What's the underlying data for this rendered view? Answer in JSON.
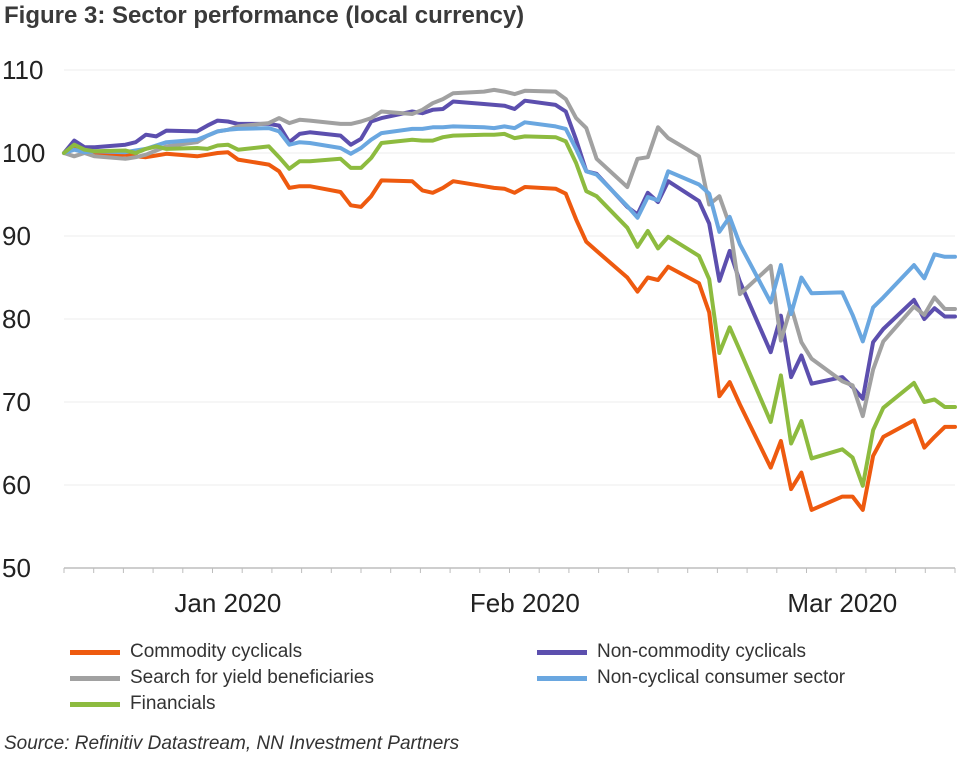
{
  "figure": {
    "title": "Figure 3: Sector performance (local currency)",
    "source": "Source: Refinitiv Datastream, NN Investment Partners"
  },
  "chart_data": {
    "type": "line",
    "title": "Figure 3: Sector performance (local currency)",
    "xlabel": "",
    "ylabel": "",
    "ylim": [
      50,
      110
    ],
    "y_ticks": [
      50,
      60,
      70,
      80,
      90,
      100,
      110
    ],
    "x_range": [
      "2019-12-31",
      "2020-03-27"
    ],
    "x_tick_labels": [
      {
        "label": "Jan 2020",
        "date": "2020-01-16"
      },
      {
        "label": "Feb 2020",
        "date": "2020-02-14"
      },
      {
        "label": "Mar 2020",
        "date": "2020-03-16"
      }
    ],
    "grid": {
      "horizontal": true,
      "vertical": false
    },
    "legend_position": "bottom",
    "x": [
      "2019-12-31",
      "2020-01-01",
      "2020-01-02",
      "2020-01-03",
      "2020-01-06",
      "2020-01-07",
      "2020-01-08",
      "2020-01-09",
      "2020-01-10",
      "2020-01-13",
      "2020-01-14",
      "2020-01-15",
      "2020-01-16",
      "2020-01-17",
      "2020-01-20",
      "2020-01-21",
      "2020-01-22",
      "2020-01-23",
      "2020-01-24",
      "2020-01-27",
      "2020-01-28",
      "2020-01-29",
      "2020-01-30",
      "2020-01-31",
      "2020-02-03",
      "2020-02-04",
      "2020-02-05",
      "2020-02-06",
      "2020-02-07",
      "2020-02-10",
      "2020-02-11",
      "2020-02-12",
      "2020-02-13",
      "2020-02-14",
      "2020-02-17",
      "2020-02-18",
      "2020-02-19",
      "2020-02-20",
      "2020-02-21",
      "2020-02-24",
      "2020-02-25",
      "2020-02-26",
      "2020-02-27",
      "2020-02-28",
      "2020-03-02",
      "2020-03-03",
      "2020-03-04",
      "2020-03-05",
      "2020-03-06",
      "2020-03-09",
      "2020-03-10",
      "2020-03-11",
      "2020-03-12",
      "2020-03-13",
      "2020-03-16",
      "2020-03-17",
      "2020-03-18",
      "2020-03-19",
      "2020-03-20",
      "2020-03-23",
      "2020-03-24",
      "2020-03-25",
      "2020-03-26",
      "2020-03-27"
    ],
    "series": [
      {
        "name": "Commodity cyclicals",
        "color": "#ee5a0f",
        "values": [
          100,
          100.8,
          100.3,
          99.9,
          99.8,
          99.6,
          99.5,
          99.7,
          99.9,
          99.6,
          99.8,
          100.0,
          100.1,
          99.2,
          98.6,
          97.8,
          95.8,
          96.0,
          96.0,
          95.3,
          93.7,
          93.5,
          94.8,
          96.7,
          96.6,
          95.5,
          95.2,
          95.8,
          96.6,
          96.0,
          95.8,
          95.7,
          95.2,
          95.9,
          95.7,
          95.1,
          92.0,
          89.3,
          88.2,
          85.0,
          83.3,
          85.0,
          84.7,
          86.3,
          84.3,
          80.8,
          70.7,
          72.4,
          69.7,
          62.1,
          65.3,
          59.5,
          61.5,
          57.0,
          58.6,
          58.6,
          57.0,
          63.5,
          65.8,
          67.8,
          64.5,
          65.8,
          67.0,
          67.0
        ]
      },
      {
        "name": "Non-commodity cyclicals",
        "color": "#5c4fae",
        "values": [
          100,
          101.5,
          100.7,
          100.7,
          101.0,
          101.3,
          102.2,
          102.0,
          102.7,
          102.6,
          103.3,
          103.9,
          103.8,
          103.5,
          103.5,
          103.3,
          101.3,
          102.3,
          102.5,
          102.1,
          101.0,
          101.7,
          103.8,
          104.2,
          105.0,
          104.8,
          105.2,
          105.3,
          106.2,
          105.9,
          105.8,
          105.7,
          105.3,
          106.3,
          105.8,
          105.0,
          101.6,
          97.8,
          97.5,
          93.5,
          92.6,
          95.2,
          94.1,
          96.6,
          94.2,
          91.5,
          84.6,
          88.2,
          84.5,
          76.0,
          80.4,
          73.0,
          75.6,
          72.2,
          73.0,
          71.8,
          70.4,
          77.2,
          78.8,
          82.3,
          80.0,
          81.3,
          80.3,
          80.3
        ]
      },
      {
        "name": "Search for yield beneficiaries",
        "color": "#a1a1a1",
        "values": [
          100,
          99.6,
          100.0,
          99.6,
          99.3,
          99.5,
          99.8,
          100.3,
          100.8,
          101.3,
          102.1,
          102.6,
          102.8,
          103.2,
          103.6,
          104.2,
          103.6,
          104.0,
          103.9,
          103.5,
          103.5,
          103.8,
          104.2,
          105.0,
          104.7,
          105.2,
          106.0,
          106.5,
          107.2,
          107.4,
          107.6,
          107.4,
          107.1,
          107.5,
          107.4,
          106.5,
          104.2,
          103.0,
          99.3,
          95.9,
          99.3,
          99.5,
          103.1,
          101.8,
          99.6,
          93.8,
          94.8,
          91.3,
          83.0,
          86.4,
          77.4,
          81.5,
          77.2,
          75.2,
          72.5,
          72.0,
          68.3,
          73.9,
          77.3,
          81.5,
          80.5,
          82.6,
          81.2,
          81.2
        ]
      },
      {
        "name": "Non-cyclical consumer sector",
        "color": "#6aa7e0",
        "values": [
          100,
          100.4,
          100.1,
          100.2,
          100.1,
          100.3,
          100.5,
          100.9,
          101.3,
          101.6,
          102.1,
          102.6,
          102.8,
          102.9,
          103.0,
          102.6,
          101.0,
          101.3,
          101.2,
          100.6,
          99.9,
          100.6,
          101.6,
          102.4,
          102.9,
          102.9,
          103.1,
          103.1,
          103.2,
          103.1,
          103.0,
          103.2,
          103.0,
          103.7,
          103.2,
          102.9,
          100.5,
          97.8,
          97.4,
          93.6,
          92.2,
          94.7,
          94.3,
          97.8,
          96.2,
          95.1,
          90.5,
          92.3,
          89.0,
          82.0,
          86.5,
          80.6,
          85.0,
          83.1,
          83.2,
          80.5,
          77.3,
          81.4,
          82.6,
          86.5,
          84.9,
          87.8,
          87.5,
          87.5
        ]
      },
      {
        "name": "Financials",
        "color": "#8dbb3f",
        "values": [
          100,
          101.0,
          100.4,
          100.2,
          100.3,
          100.0,
          100.5,
          100.8,
          100.5,
          100.6,
          100.5,
          100.9,
          101.0,
          100.4,
          100.8,
          99.5,
          98.1,
          99.0,
          99.0,
          99.3,
          98.2,
          98.2,
          99.4,
          101.2,
          101.6,
          101.5,
          101.5,
          101.9,
          102.1,
          102.2,
          102.2,
          102.3,
          101.8,
          102.0,
          101.9,
          101.4,
          98.8,
          95.4,
          94.8,
          91.0,
          88.7,
          90.6,
          88.5,
          89.9,
          87.6,
          84.8,
          75.9,
          79.0,
          76.2,
          67.6,
          73.2,
          65.0,
          67.7,
          63.2,
          64.3,
          63.3,
          59.9,
          66.6,
          69.3,
          72.3,
          70.0,
          70.3,
          69.4,
          69.4
        ]
      }
    ]
  }
}
